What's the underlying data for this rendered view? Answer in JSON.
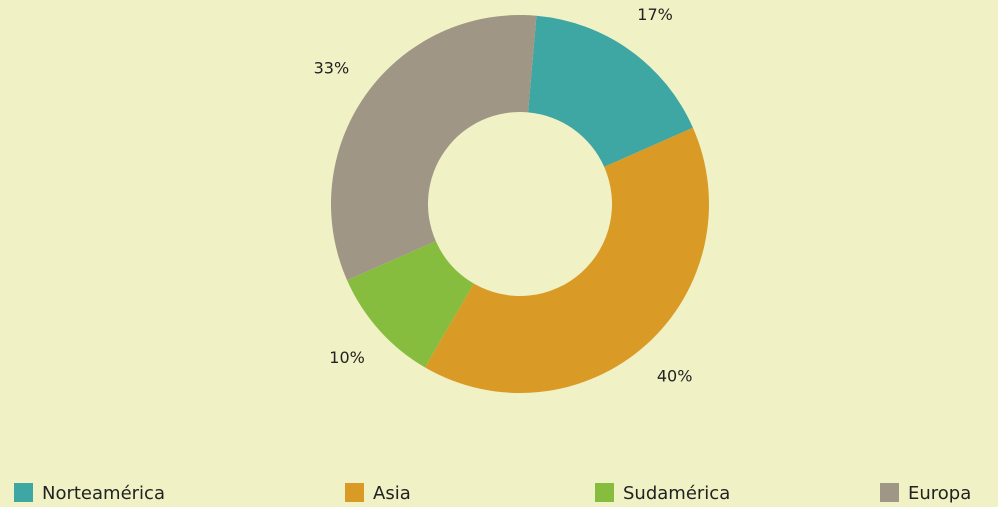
{
  "chart_data": {
    "type": "donut",
    "categories": [
      "Norteamérica",
      "Asia",
      "Sudamérica",
      "Europa"
    ],
    "values": [
      17,
      40,
      10,
      33
    ],
    "value_labels": [
      "17%",
      "40%",
      "10%",
      "33%"
    ],
    "colors": [
      "#3ea6a3",
      "#d99a26",
      "#86bd3f",
      "#a09686"
    ]
  }
}
